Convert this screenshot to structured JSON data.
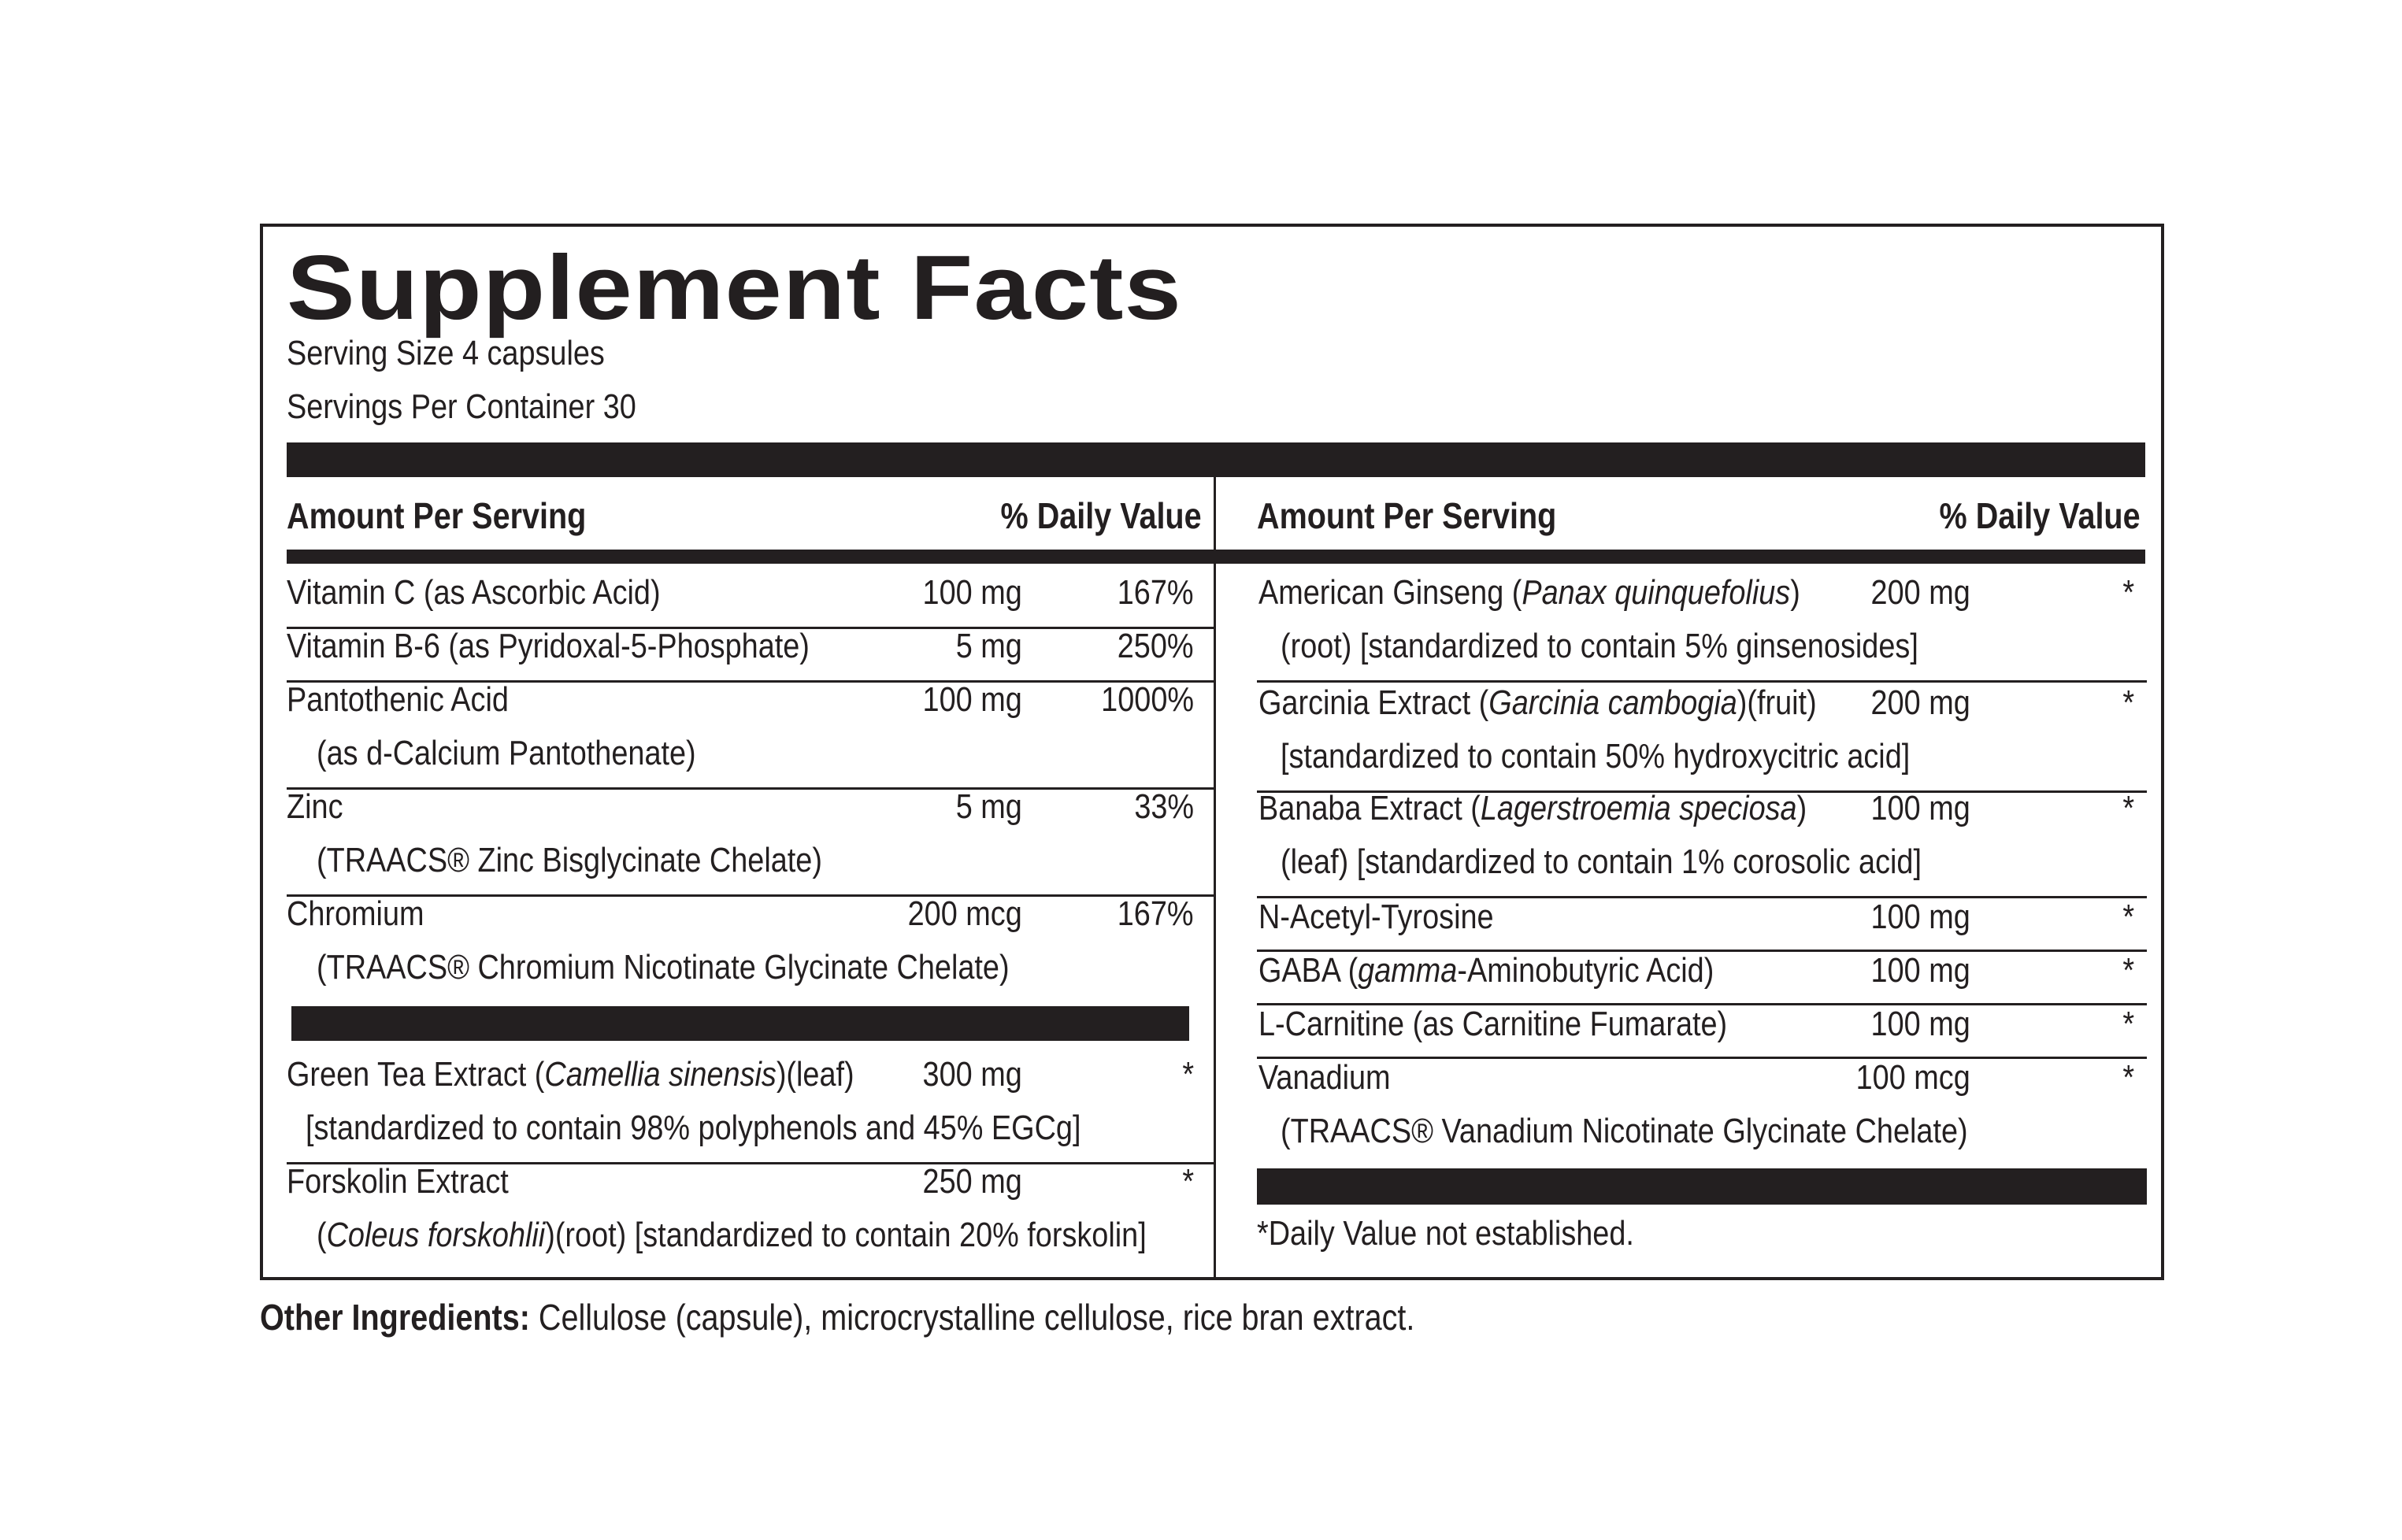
{
  "title": "Supplement Facts",
  "serving_size": "Serving Size 4 capsules",
  "servings_per_container": "Servings Per Container 30",
  "headers": {
    "amount": "Amount Per Serving",
    "dv": "% Daily Value"
  },
  "left": {
    "group1": [
      {
        "name": "Vitamin C (as Ascorbic Acid)",
        "amount": "100 mg",
        "dv": "167%"
      },
      {
        "name": "Vitamin B-6 (as Pyridoxal-5-Phosphate)",
        "amount": "5 mg",
        "dv": "250%"
      },
      {
        "name": "Pantothenic Acid",
        "sub": "(as d-Calcium Pantothenate)",
        "amount": "100 mg",
        "dv": "1000%"
      },
      {
        "name": "Zinc",
        "sub": "(TRAACS® Zinc Bisglycinate Chelate)",
        "amount": "5 mg",
        "dv": "33%"
      },
      {
        "name": "Chromium",
        "sub": "(TRAACS® Chromium Nicotinate Glycinate Chelate)",
        "amount": "200 mcg",
        "dv": "167%"
      }
    ],
    "group2": [
      {
        "name_pre": "Green Tea Extract (",
        "name_italic": "Camellia sinensis",
        "name_post": ")(leaf)",
        "sub": "[standardized to contain 98% polyphenols and 45% EGCg]",
        "amount": "300 mg",
        "dv": "*"
      },
      {
        "name": "Forskolin Extract",
        "sub_pre": "(",
        "sub_italic": "Coleus forskohlii",
        "sub_post": ")(root) [standardized to contain 20% forskolin]",
        "amount": "250 mg",
        "dv": "*"
      }
    ]
  },
  "right": [
    {
      "name_pre": "American Ginseng (",
      "name_italic": "Panax quinquefolius",
      "name_post": ")",
      "sub": "(root) [standardized to contain 5% ginsenosides]",
      "amount": "200 mg",
      "dv": "*"
    },
    {
      "name_pre": "Garcinia Extract (",
      "name_italic": "Garcinia cambogia",
      "name_post": ")(fruit)",
      "sub": "[standardized to contain 50% hydroxycitric acid]",
      "amount": "200 mg",
      "dv": "*"
    },
    {
      "name_pre": "Banaba Extract (",
      "name_italic": "Lagerstroemia speciosa",
      "name_post": ")",
      "sub": "(leaf) [standardized to contain 1% corosolic acid]",
      "amount": "100 mg",
      "dv": "*"
    },
    {
      "name": "N-Acetyl-Tyrosine",
      "amount": "100 mg",
      "dv": "*"
    },
    {
      "name_pre": "GABA (",
      "name_italic": "gamma",
      "name_post": "-Aminobutyric Acid)",
      "amount": "100 mg",
      "dv": "*"
    },
    {
      "name": "L-Carnitine (as Carnitine Fumarate)",
      "amount": "100 mg",
      "dv": "*"
    },
    {
      "name": "Vanadium",
      "sub": "(TRAACS® Vanadium Nicotinate Glycinate Chelate)",
      "amount": "100 mcg",
      "dv": "*"
    }
  ],
  "footnote": "*Daily Value not established.",
  "other_ingredients_label": "Other Ingredients:",
  "other_ingredients_text": " Cellulose (capsule), microcrystalline cellulose, rice bran extract."
}
